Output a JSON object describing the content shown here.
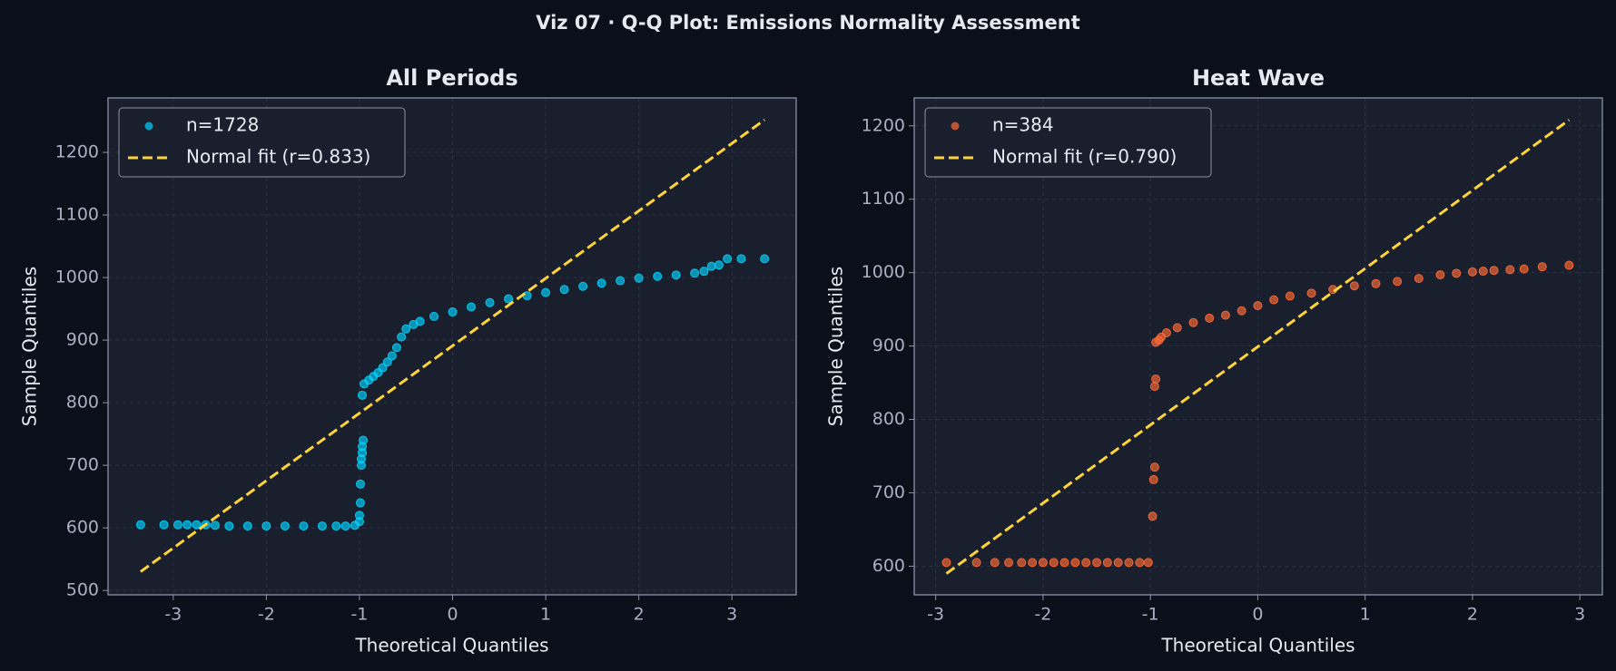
{
  "title": "Viz 07 · Q-Q Plot: Emissions Normality Assessment",
  "chart_data": [
    {
      "type": "scatter",
      "title": "All Periods",
      "x_label": "Theoretical Quantiles",
      "y_label": "Sample Quantiles",
      "xlim": [
        -3.7,
        3.69
      ],
      "ylim": [
        493,
        1287
      ],
      "xticks": [
        -3,
        -2,
        -1,
        0,
        1,
        2,
        3
      ],
      "yticks": [
        500,
        600,
        700,
        800,
        900,
        1000,
        1100,
        1200
      ],
      "grid": true,
      "legend": "upper-left",
      "series": [
        {
          "name": "n=1728",
          "style": "markers",
          "color": "#00d4ff",
          "x": [
            -3.35,
            -3.1,
            -2.95,
            -2.85,
            -2.75,
            -2.65,
            -2.55,
            -2.4,
            -2.2,
            -2.0,
            -1.8,
            -1.6,
            -1.4,
            -1.25,
            -1.15,
            -1.05,
            -1.0,
            -1.0,
            -0.99,
            -0.99,
            -0.98,
            -0.98,
            -0.97,
            -0.97,
            -0.96,
            -0.97,
            -0.95,
            -0.9,
            -0.85,
            -0.8,
            -0.75,
            -0.7,
            -0.65,
            -0.6,
            -0.55,
            -0.5,
            -0.42,
            -0.35,
            -0.2,
            0.0,
            0.2,
            0.4,
            0.6,
            0.8,
            1.0,
            1.2,
            1.4,
            1.6,
            1.8,
            2.0,
            2.2,
            2.4,
            2.6,
            2.7,
            2.78,
            2.86,
            2.95,
            3.1,
            3.35
          ],
          "values": [
            605,
            605,
            605,
            605,
            605,
            605,
            604,
            603,
            603,
            603,
            603,
            603,
            603,
            603,
            603,
            604,
            610,
            620,
            640,
            670,
            700,
            710,
            720,
            730,
            740,
            812,
            830,
            836,
            842,
            848,
            856,
            865,
            875,
            888,
            905,
            918,
            925,
            930,
            938,
            945,
            953,
            960,
            966,
            971,
            976,
            981,
            986,
            991,
            995,
            999,
            1002,
            1004,
            1007,
            1010,
            1018,
            1020,
            1030,
            1030,
            1030
          ]
        },
        {
          "name": "Normal fit (r=0.833)",
          "style": "dashed",
          "color": "#ffd43b",
          "x": [
            -3.35,
            3.35
          ],
          "values": [
            530,
            1252
          ]
        }
      ]
    },
    {
      "type": "scatter",
      "title": "Heat Wave",
      "x_label": "Theoretical Quantiles",
      "y_label": "Sample Quantiles",
      "xlim": [
        -3.2,
        3.21
      ],
      "ylim": [
        561,
        1238
      ],
      "xticks": [
        -3,
        -2,
        -1,
        0,
        1,
        2,
        3
      ],
      "yticks": [
        600,
        700,
        800,
        900,
        1000,
        1100,
        1200
      ],
      "grid": true,
      "legend": "upper-left",
      "series": [
        {
          "name": "n=384",
          "style": "markers",
          "color": "#ff6b35",
          "x": [
            -2.9,
            -2.62,
            -2.45,
            -2.32,
            -2.2,
            -2.1,
            -2.0,
            -1.9,
            -1.8,
            -1.7,
            -1.6,
            -1.5,
            -1.4,
            -1.3,
            -1.2,
            -1.1,
            -1.02,
            -0.98,
            -0.97,
            -0.96,
            -0.96,
            -0.95,
            -0.95,
            -0.92,
            -0.9,
            -0.85,
            -0.75,
            -0.6,
            -0.45,
            -0.3,
            -0.15,
            0.0,
            0.15,
            0.3,
            0.5,
            0.7,
            0.9,
            1.1,
            1.3,
            1.5,
            1.7,
            1.85,
            2.0,
            2.1,
            2.2,
            2.35,
            2.48,
            2.65,
            2.9
          ],
          "values": [
            605,
            605,
            605,
            605,
            605,
            605,
            605,
            605,
            605,
            605,
            605,
            605,
            605,
            605,
            605,
            605,
            605,
            668,
            718,
            735,
            845,
            855,
            905,
            908,
            912,
            918,
            925,
            932,
            938,
            942,
            948,
            955,
            963,
            968,
            972,
            977,
            982,
            985,
            988,
            992,
            997,
            999,
            1001,
            1002,
            1003,
            1004,
            1005,
            1008,
            1010
          ]
        },
        {
          "name": "Normal fit (r=0.790)",
          "style": "dashed",
          "color": "#ffd43b",
          "x": [
            -2.9,
            2.9
          ],
          "values": [
            590,
            1208
          ]
        }
      ]
    }
  ]
}
